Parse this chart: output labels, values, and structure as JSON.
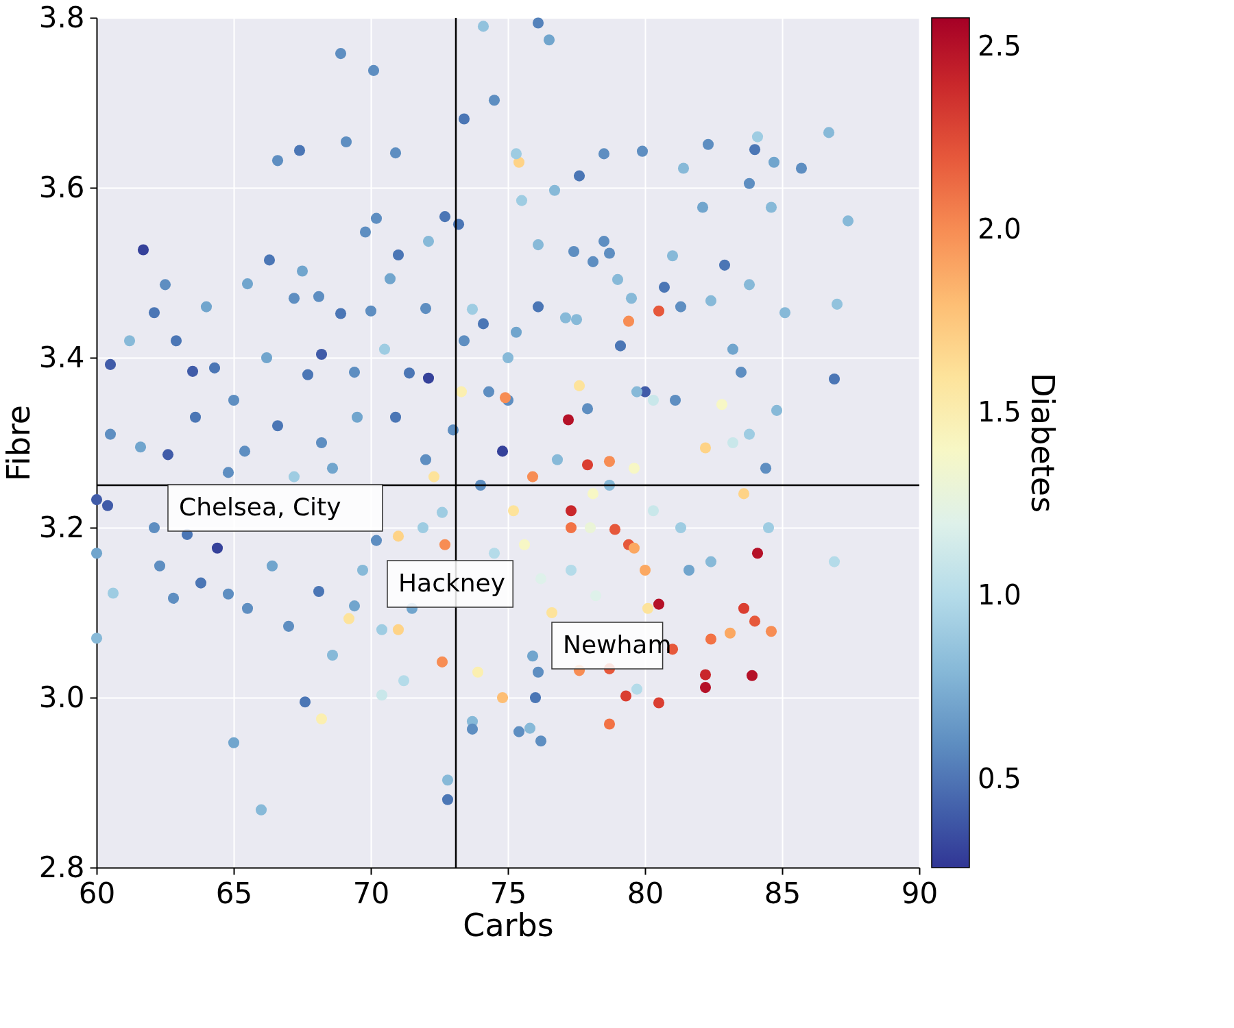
{
  "chart_data": {
    "type": "scatter",
    "xlabel": "Carbs",
    "ylabel": "Fibre",
    "clabel": "Diabetes",
    "xlim": [
      60,
      90
    ],
    "xticks": [
      60,
      65,
      70,
      75,
      80,
      85,
      90
    ],
    "ylim": [
      2.8,
      3.8
    ],
    "yticks": [
      2.8,
      {
        "value": 3,
        "label": "3.0"
      },
      3.2,
      3.4,
      3.6,
      3.8
    ],
    "clim": [
      0.26,
      2.58
    ],
    "cticks": [
      0.5,
      {
        "value": 1,
        "label": "1.0"
      },
      1.5,
      {
        "value": 2,
        "label": "2.0"
      },
      2.5
    ],
    "grid": true,
    "marker": "circle",
    "ref_lines": [
      {
        "axis": "x",
        "value": 73.1,
        "color": "#000000"
      },
      {
        "axis": "y",
        "value": 3.25,
        "color": "#000000"
      }
    ],
    "annotations": [
      "Chelsea, City",
      "Hackney",
      "Newham"
    ],
    "x": [
      76.1,
      74.1,
      76.5,
      68.9,
      70.1,
      73.4,
      74.5,
      69.1,
      67.4,
      70.9,
      66.6,
      75.4,
      75.3,
      77.6,
      78.5,
      79.9,
      82.3,
      84.0,
      84.1,
      86.7,
      85.7,
      84.7,
      83.8,
      81.4,
      76.7,
      75.5,
      87.4,
      84.6,
      82.1,
      73.2,
      72.7,
      70.2,
      69.8,
      72.1,
      76.1,
      61.7,
      77.4,
      78.5,
      78.7,
      78.1,
      82.9,
      71.0,
      66.3,
      62.5,
      65.5,
      67.5,
      70.7,
      79.0,
      81.0,
      83.8,
      87.0,
      85.1,
      80.5,
      79.4,
      76.1,
      74.1,
      73.7,
      62.1,
      64.0,
      67.2,
      68.1,
      68.9,
      70.0,
      72.0,
      77.5,
      79.5,
      81.3,
      82.4,
      75.3,
      60.5,
      60.5,
      61.2,
      62.9,
      63.5,
      64.3,
      66.2,
      67.7,
      68.2,
      69.4,
      70.5,
      71.4,
      72.1,
      73.4,
      74.3,
      75.0,
      75.0,
      77.1,
      79.1,
      80.0,
      80.7,
      83.2,
      86.9,
      84.8,
      83.5,
      82.8,
      81.1,
      77.2,
      77.6,
      74.9,
      73.3,
      73.0,
      74.8,
      75.9,
      78.7,
      77.9,
      77.3,
      77.3,
      78.9,
      79.4,
      79.6,
      82.2,
      83.6,
      84.1,
      80.0,
      80.1,
      80.5,
      81.0,
      82.4,
      83.1,
      83.6,
      84.0,
      84.6,
      82.2,
      82.2,
      83.9,
      80.5,
      79.3,
      78.7,
      78.7,
      77.6,
      74.8,
      73.9,
      73.7,
      73.7,
      72.8,
      72.8,
      72.6,
      72.7,
      75.4,
      75.8,
      76.2,
      76.1,
      76.0,
      75.9,
      68.2,
      67.6,
      65.0,
      66.0,
      60.0,
      60.6,
      60.0,
      60.0,
      60.4,
      62.1,
      62.3,
      62.8,
      63.3,
      63.8,
      64.1,
      64.4,
      64.8,
      65.5,
      66.4,
      67.0,
      68.1,
      68.6,
      69.2,
      69.4,
      70.4,
      70.4,
      71.0,
      71.2,
      71.5,
      70.2,
      71.0,
      71.9,
      72.3,
      72.6,
      72.0,
      70.9,
      69.5,
      68.6,
      68.2,
      67.2,
      66.6,
      65.4,
      64.8,
      63.6,
      62.6,
      61.6,
      65.0,
      66.1,
      67.5,
      68.8,
      69.7,
      74.0,
      74.5,
      75.2,
      75.6,
      76.2,
      76.6,
      77.0,
      77.3,
      78.0,
      78.1,
      78.7,
      79.6,
      80.3,
      81.3,
      81.6,
      82.4,
      83.2,
      83.8,
      84.4,
      84.5,
      86.9,
      79.7,
      78.2,
      76.8,
      77.9,
      79.7,
      80.3
    ],
    "values": [
      3.794,
      3.79,
      3.774,
      3.758,
      3.738,
      3.681,
      3.703,
      3.654,
      3.644,
      3.641,
      3.632,
      3.63,
      3.64,
      3.614,
      3.64,
      3.643,
      3.651,
      3.645,
      3.66,
      3.665,
      3.623,
      3.63,
      3.605,
      3.623,
      3.597,
      3.585,
      3.561,
      3.577,
      3.577,
      3.557,
      3.566,
      3.564,
      3.548,
      3.537,
      3.533,
      3.527,
      3.525,
      3.537,
      3.523,
      3.513,
      3.509,
      3.521,
      3.515,
      3.486,
      3.487,
      3.502,
      3.493,
      3.492,
      3.52,
      3.486,
      3.463,
      3.453,
      3.455,
      3.443,
      3.46,
      3.44,
      3.457,
      3.453,
      3.46,
      3.47,
      3.472,
      3.452,
      3.455,
      3.458,
      3.445,
      3.47,
      3.46,
      3.467,
      3.43,
      3.392,
      3.31,
      3.42,
      3.42,
      3.384,
      3.388,
      3.4,
      3.38,
      3.404,
      3.383,
      3.41,
      3.382,
      3.376,
      3.42,
      3.36,
      3.4,
      3.35,
      3.447,
      3.414,
      3.36,
      3.483,
      3.41,
      3.375,
      3.338,
      3.383,
      3.345,
      3.35,
      3.327,
      3.367,
      3.353,
      3.36,
      3.315,
      3.29,
      3.26,
      3.278,
      3.274,
      3.22,
      3.2,
      3.198,
      3.18,
      3.176,
      3.294,
      3.24,
      3.17,
      3.15,
      3.105,
      3.11,
      3.057,
      3.069,
      3.076,
      3.105,
      3.09,
      3.078,
      3.027,
      3.012,
      3.026,
      2.994,
      3.002,
      3.034,
      2.969,
      3.032,
      3.0,
      3.03,
      2.972,
      2.963,
      2.903,
      2.88,
      3.042,
      3.18,
      2.96,
      2.964,
      2.949,
      3.03,
      3.0,
      3.049,
      2.975,
      2.995,
      2.947,
      2.868,
      3.07,
      3.123,
      3.17,
      3.233,
      3.226,
      3.2,
      3.155,
      3.117,
      3.192,
      3.135,
      null,
      3.176,
      3.122,
      3.105,
      3.155,
      3.084,
      3.125,
      3.05,
      3.093,
      3.108,
      3.08,
      3.003,
      3.08,
      3.02,
      3.105,
      3.185,
      3.19,
      3.2,
      3.26,
      3.218,
      3.28,
      3.33,
      3.33,
      3.27,
      3.3,
      3.26,
      3.32,
      3.29,
      3.265,
      3.33,
      3.286,
      3.295,
      3.35,
      null,
      null,
      null,
      3.15,
      3.25,
      3.17,
      3.22,
      3.18,
      3.14,
      3.1,
      null,
      3.15,
      3.2,
      3.24,
      3.25,
      3.27,
      3.22,
      3.2,
      3.15,
      3.16,
      3.3,
      3.31,
      3.27,
      3.2,
      3.16,
      3.01,
      3.12,
      3.28,
      3.34,
      3.36,
      3.35
    ],
    "cvalues": [
      0.55,
      0.85,
      0.7,
      0.6,
      0.6,
      0.5,
      0.6,
      0.6,
      0.5,
      0.6,
      0.6,
      1.7,
      0.9,
      0.5,
      0.6,
      0.6,
      0.6,
      0.5,
      0.9,
      0.8,
      0.6,
      0.7,
      0.6,
      0.8,
      0.8,
      0.9,
      0.8,
      0.8,
      0.7,
      0.5,
      0.5,
      0.6,
      0.6,
      0.8,
      0.8,
      0.3,
      0.6,
      0.6,
      0.6,
      0.6,
      0.5,
      0.5,
      0.5,
      0.6,
      0.7,
      0.7,
      0.7,
      0.8,
      0.8,
      0.8,
      0.85,
      0.8,
      2.2,
      2.0,
      0.5,
      0.5,
      0.9,
      0.5,
      0.7,
      0.6,
      0.6,
      0.5,
      0.6,
      0.6,
      0.8,
      0.8,
      0.6,
      0.8,
      0.7,
      0.4,
      0.6,
      0.8,
      0.5,
      0.4,
      0.5,
      0.7,
      0.5,
      0.4,
      0.6,
      0.9,
      0.5,
      0.3,
      0.6,
      0.6,
      0.8,
      0.6,
      0.8,
      0.5,
      0.4,
      0.5,
      0.7,
      0.5,
      0.8,
      0.6,
      1.4,
      0.6,
      2.5,
      1.6,
      2.0,
      1.5,
      0.6,
      0.3,
      2.0,
      2.0,
      2.3,
      2.4,
      2.1,
      2.2,
      2.2,
      1.9,
      1.7,
      1.7,
      2.5,
      1.9,
      1.6,
      2.5,
      2.2,
      2.1,
      1.9,
      2.3,
      2.2,
      2.0,
      2.4,
      2.5,
      2.5,
      2.3,
      2.3,
      2.2,
      2.1,
      2.0,
      1.8,
      1.5,
      0.8,
      0.6,
      0.8,
      0.5,
      2.0,
      2.0,
      0.6,
      0.8,
      0.6,
      0.6,
      0.5,
      0.7,
      1.5,
      0.5,
      0.7,
      0.8,
      0.8,
      0.9,
      0.7,
      0.4,
      0.4,
      0.6,
      0.6,
      0.6,
      0.5,
      0.5,
      null,
      0.3,
      0.6,
      0.6,
      0.7,
      0.6,
      0.5,
      0.8,
      1.6,
      0.7,
      0.9,
      1.1,
      1.7,
      1.0,
      0.7,
      0.6,
      1.7,
      0.9,
      1.6,
      0.9,
      0.6,
      0.5,
      0.7,
      0.7,
      0.6,
      0.9,
      0.5,
      0.6,
      0.6,
      0.5,
      0.4,
      0.7,
      0.6,
      null,
      null,
      null,
      0.8,
      0.6,
      1.0,
      1.6,
      1.4,
      1.2,
      1.6,
      null,
      1.0,
      1.3,
      1.4,
      0.8,
      1.4,
      1.1,
      0.9,
      0.7,
      0.8,
      1.1,
      0.9,
      0.6,
      0.9,
      1.0,
      1.0,
      1.2,
      0.8,
      0.6,
      0.8,
      1.1
    ]
  }
}
